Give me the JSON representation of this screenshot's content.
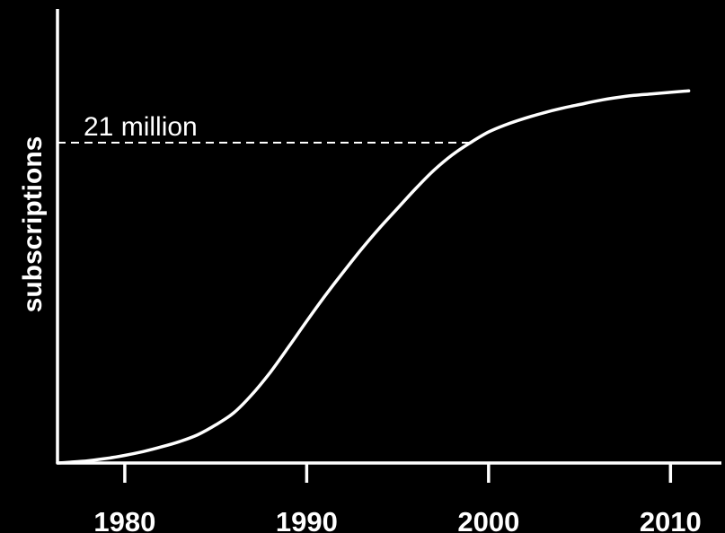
{
  "chart_data": {
    "type": "line",
    "title": "",
    "xlabel": "",
    "ylabel": "subscriptions",
    "x_ticks": [
      1980,
      1990,
      2000,
      2010
    ],
    "tick_labels": [
      "1980",
      "1990",
      "2000",
      "2010"
    ],
    "xlim": [
      1976.3,
      2012.8
    ],
    "ylim": [
      0,
      28
    ],
    "grid": false,
    "legend": "none",
    "reference_line": {
      "y": 21,
      "label": "21 million"
    },
    "series": [
      {
        "color": "#ffffff",
        "points": [
          [
            1976.3,
            0.0
          ],
          [
            1977,
            0.05
          ],
          [
            1978,
            0.15
          ],
          [
            1979,
            0.3
          ],
          [
            1980,
            0.5
          ],
          [
            1981,
            0.75
          ],
          [
            1982,
            1.05
          ],
          [
            1983,
            1.4
          ],
          [
            1984,
            1.85
          ],
          [
            1985,
            2.5
          ],
          [
            1986,
            3.3
          ],
          [
            1987,
            4.5
          ],
          [
            1988,
            5.95
          ],
          [
            1989,
            7.6
          ],
          [
            1990,
            9.3
          ],
          [
            1991,
            10.95
          ],
          [
            1992,
            12.5
          ],
          [
            1993,
            14.0
          ],
          [
            1994,
            15.4
          ],
          [
            1995,
            16.7
          ],
          [
            1996,
            18.0
          ],
          [
            1997,
            19.2
          ],
          [
            1998,
            20.2
          ],
          [
            1999,
            21.0
          ],
          [
            2000,
            21.7
          ],
          [
            2001,
            22.2
          ],
          [
            2002,
            22.6
          ],
          [
            2003,
            22.95
          ],
          [
            2004,
            23.25
          ],
          [
            2005,
            23.5
          ],
          [
            2006,
            23.75
          ],
          [
            2007,
            23.95
          ],
          [
            2008,
            24.1
          ],
          [
            2009,
            24.2
          ],
          [
            2010,
            24.3
          ],
          [
            2011,
            24.4
          ]
        ]
      }
    ]
  }
}
